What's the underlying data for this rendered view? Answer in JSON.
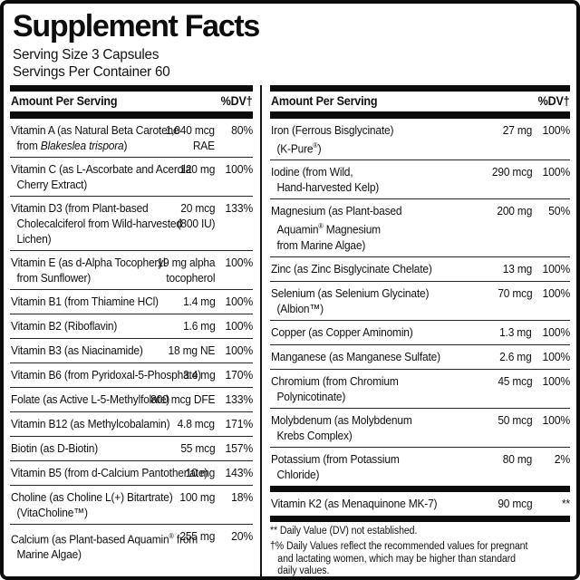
{
  "label": {
    "title": "Supplement Facts",
    "serving_size": "Serving Size 3 Capsules",
    "servings_per_container": "Servings Per Container 60"
  },
  "left_column": {
    "header": {
      "amount": "Amount Per Serving",
      "dv": "%DV†"
    },
    "rows": [
      {
        "name_lines": [
          "Vitamin A (as Natural Beta Carotene",
          [
            "from ",
            {
              "t": "Blakeslea trispora",
              "i": true
            },
            ")"
          ]
        ],
        "amount_lines": [
          "1,040 mcg",
          "RAE"
        ],
        "dv": "80%"
      },
      {
        "name_lines": [
          "Vitamin C (as L-Ascorbate and Acerola",
          "Cherry Extract)"
        ],
        "amount_lines": [
          "120 mg"
        ],
        "dv": "100%"
      },
      {
        "name_lines": [
          "Vitamin D3 (from Plant-based",
          "Cholecalciferol from Wild-harvested",
          "Lichen)"
        ],
        "amount_lines": [
          "20 mcg",
          "(800 IU)"
        ],
        "dv": "133%"
      },
      {
        "name_lines": [
          "Vitamin E (as d-Alpha Tocopheryl",
          "from Sunflower)"
        ],
        "amount_lines": [
          "19 mg alpha",
          "tocopherol"
        ],
        "dv": "100%"
      },
      {
        "name_lines": [
          "Vitamin B1 (from Thiamine HCl)"
        ],
        "amount_lines": [
          "1.4 mg"
        ],
        "dv": "100%"
      },
      {
        "name_lines": [
          "Vitamin B2 (Riboflavin)"
        ],
        "amount_lines": [
          "1.6 mg"
        ],
        "dv": "100%"
      },
      {
        "name_lines": [
          "Vitamin B3 (as Niacinamide)"
        ],
        "amount_lines": [
          "18 mg NE"
        ],
        "dv": "100%"
      },
      {
        "name_lines": [
          "Vitamin B6 (from Pyridoxal-5-Phosphate)"
        ],
        "amount_lines": [
          "3.4 mg"
        ],
        "dv": "170%"
      },
      {
        "name_lines": [
          "Folate (as Active L-5-Methylfolate)"
        ],
        "amount_lines": [
          "800 mcg DFE"
        ],
        "dv": "133%"
      },
      {
        "name_lines": [
          "Vitamin B12 (as Methylcobalamin)"
        ],
        "amount_lines": [
          "4.8 mcg"
        ],
        "dv": "171%"
      },
      {
        "name_lines": [
          "Biotin (as D-Biotin)"
        ],
        "amount_lines": [
          "55 mcg"
        ],
        "dv": "157%"
      },
      {
        "name_lines": [
          "Vitamin B5 (from d-Calcium Pantothenate)"
        ],
        "amount_lines": [
          "10 mg"
        ],
        "dv": "143%"
      },
      {
        "name_lines": [
          "Choline (as Choline L(+) Bitartrate)",
          "(VitaCholine™)"
        ],
        "amount_lines": [
          "100 mg"
        ],
        "dv": "18%"
      },
      {
        "name_lines": [
          [
            "Calcium (as Plant-based Aquamin",
            {
              "t": "®",
              "sup": true
            },
            " from"
          ],
          "Marine Algae)"
        ],
        "amount_lines": [
          "255 mg"
        ],
        "dv": "20%"
      }
    ]
  },
  "right_column": {
    "header": {
      "amount": "Amount Per Serving",
      "dv": "%DV†"
    },
    "rows": [
      {
        "name_lines": [
          "Iron (Ferrous Bisglycinate)",
          [
            "(K-Pure",
            {
              "t": "®",
              "sup": true
            },
            ")"
          ]
        ],
        "amount_lines": [
          "27 mg"
        ],
        "dv": "100%"
      },
      {
        "name_lines": [
          "Iodine (from Wild,",
          "Hand-harvested Kelp)"
        ],
        "amount_lines": [
          "290 mcg"
        ],
        "dv": "100%"
      },
      {
        "name_lines": [
          "Magnesium (as Plant-based",
          [
            "Aquamin",
            {
              "t": "®",
              "sup": true
            },
            " Magnesium"
          ],
          "from Marine Algae)"
        ],
        "amount_lines": [
          "200 mg"
        ],
        "dv": "50%"
      },
      {
        "name_lines": [
          "Zinc (as Zinc Bisglycinate Chelate)"
        ],
        "amount_lines": [
          "13 mg"
        ],
        "dv": "100%"
      },
      {
        "name_lines": [
          "Selenium (as Selenium Glycinate)",
          "(Albion™)"
        ],
        "amount_lines": [
          "70 mcg"
        ],
        "dv": "100%"
      },
      {
        "name_lines": [
          "Copper (as Copper Aminomin)"
        ],
        "amount_lines": [
          "1.3 mg"
        ],
        "dv": "100%"
      },
      {
        "name_lines": [
          "Manganese (as Manganese Sulfate)"
        ],
        "amount_lines": [
          "2.6 mg"
        ],
        "dv": "100%"
      },
      {
        "name_lines": [
          "Chromium (from Chromium",
          "Polynicotinate)"
        ],
        "amount_lines": [
          "45 mcg"
        ],
        "dv": "100%"
      },
      {
        "name_lines": [
          "Molybdenum (as Molybdenum",
          "Krebs Complex)"
        ],
        "amount_lines": [
          "50 mcg"
        ],
        "dv": "100%"
      },
      {
        "name_lines": [
          "Potassium (from Potassium",
          "Chloride)"
        ],
        "amount_lines": [
          "80 mg"
        ],
        "dv": "2%"
      }
    ],
    "k2_row": {
      "name_lines": [
        "Vitamin K2 (as Menaquinone MK-7)"
      ],
      "amount_lines": [
        "90 mcg"
      ],
      "dv": "**"
    },
    "footnotes": [
      {
        "lines": [
          "** Daily Value (DV) not established."
        ]
      },
      {
        "lines": [
          "†% Daily Values reflect the recommended values for pregnant",
          "and lactating women, which may be higher than standard",
          "daily values."
        ]
      }
    ]
  }
}
